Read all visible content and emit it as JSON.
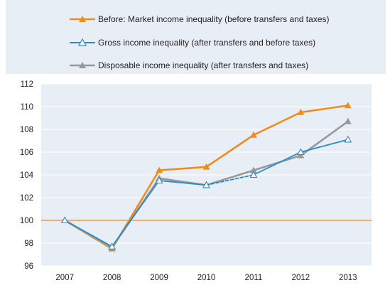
{
  "chart_data": {
    "type": "line",
    "title": "",
    "xlabel": "",
    "ylabel": "",
    "categories": [
      "2007",
      "2008",
      "2009",
      "2010",
      "2011",
      "2012",
      "2013"
    ],
    "ylim": [
      96,
      112
    ],
    "yticks": [
      96,
      98,
      100,
      102,
      104,
      106,
      108,
      110,
      112
    ],
    "reference_line": 100,
    "grid": "horizontal",
    "legend_position": "top",
    "series": [
      {
        "name": "Before: Market income inequality (before transfers and taxes)",
        "values": [
          100,
          97.5,
          104.4,
          104.7,
          107.5,
          109.5,
          110.1
        ],
        "color": "#f08c1e",
        "marker": "filled-triangle",
        "dashed_segment": null
      },
      {
        "name": "Gross income inequality (after transfers and before taxes)",
        "values": [
          100,
          97.7,
          103.5,
          103.1,
          104.0,
          106.0,
          107.1
        ],
        "color": "#2a8ac8",
        "marker": "open-triangle",
        "dashed_segment": [
          "2010",
          "2011"
        ]
      },
      {
        "name": "Disposable income inequality (after transfers and taxes)",
        "values": [
          100,
          97.6,
          103.7,
          103.1,
          104.4,
          105.7,
          108.7
        ],
        "color": "#999999",
        "marker": "filled-triangle",
        "dashed_segment": null
      }
    ]
  }
}
